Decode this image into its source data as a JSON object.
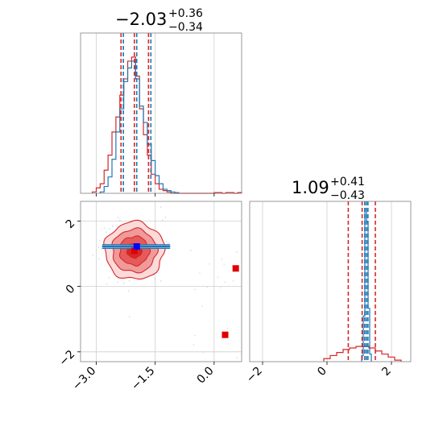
{
  "chart_data": {
    "type": "corner",
    "panels": [
      {
        "id": "hist-param1",
        "type": "histogram",
        "title": {
          "value": "−2.03",
          "sup": "+0.36",
          "sub": "−0.34"
        },
        "xlim": [
          -3.4,
          0.7
        ],
        "grid": true,
        "series": [
          {
            "color": "#d62728",
            "bins": [
              -3.05,
              -2.95,
              -2.85,
              -2.75,
              -2.65,
              -2.55,
              -2.45,
              -2.35,
              -2.25,
              -2.15,
              -2.05,
              -1.95,
              -1.85,
              -1.75,
              -1.65,
              -1.55,
              -1.45,
              -1.35,
              -1.25,
              -1.15,
              -1.05,
              -0.95,
              -0.85,
              -0.75,
              -0.65,
              -0.55,
              -0.45,
              -0.35,
              -0.25,
              -0.15,
              -0.05,
              0.05,
              0.15,
              0.25,
              0.35,
              0.45,
              0.55,
              0.65
            ],
            "counts": [
              0.01,
              0.04,
              0.07,
              0.17,
              0.28,
              0.45,
              0.56,
              0.72,
              0.84,
              0.97,
              1.0,
              0.86,
              0.62,
              0.43,
              0.28,
              0.14,
              0.07,
              0.03,
              0.02,
              0.01,
              0,
              0,
              0,
              0,
              0,
              0,
              0,
              0,
              0,
              0,
              0,
              0.005,
              0.005,
              0,
              0.005,
              0.005,
              0,
              0.005
            ]
          },
          {
            "color": "#1f77b4",
            "bins": [
              -2.85,
              -2.75,
              -2.65,
              -2.55,
              -2.45,
              -2.35,
              -2.25,
              -2.15,
              -2.05,
              -1.95,
              -1.85,
              -1.75,
              -1.65,
              -1.55,
              -1.45,
              -1.35,
              -1.25,
              -1.15,
              -1.05,
              -0.95
            ],
            "counts": [
              0.01,
              0.05,
              0.12,
              0.25,
              0.45,
              0.62,
              0.82,
              0.92,
              0.97,
              0.84,
              0.64,
              0.52,
              0.36,
              0.24,
              0.13,
              0.07,
              0.03,
              0.02,
              0.01,
              0.005
            ]
          }
        ],
        "quantile_lines": [
          {
            "x": -2.37,
            "color": "#d62728"
          },
          {
            "x": -2.03,
            "color": "#d62728"
          },
          {
            "x": -1.67,
            "color": "#d62728"
          },
          {
            "x": -2.31,
            "color": "#1f77b4"
          },
          {
            "x": -1.97,
            "color": "#1f77b4"
          },
          {
            "x": -1.61,
            "color": "#1f77b4"
          }
        ]
      },
      {
        "id": "scatter-2d",
        "type": "2d-contour",
        "xlim": [
          -3.4,
          0.7
        ],
        "ylim": [
          -2.3,
          2.6
        ],
        "xticks": [
          -3.0,
          -1.5,
          0.0
        ],
        "xtick_labels": [
          "−3.0",
          "−1.5",
          "0.0"
        ],
        "yticks": [
          -2,
          0,
          2
        ],
        "ytick_labels": [
          "−2",
          "0",
          "2"
        ],
        "grid": true,
        "contours_red": {
          "center": [
            -2.03,
            1.09
          ],
          "sigma": [
            0.36,
            0.42
          ],
          "levels": [
            0.5,
            1.0,
            1.5,
            2.0
          ],
          "colors": [
            "#d62728",
            "#e65a5a",
            "#f09a9a",
            "#fbdada"
          ]
        },
        "blue_band": {
          "center": [
            -2.0,
            1.22
          ],
          "x_extent": [
            -2.85,
            -1.12
          ],
          "y_halfwidth": 0.06,
          "color": "#1f77b4"
        },
        "scatter_points_red": [
          [
            0.55,
            0.55
          ],
          [
            0.28,
            -1.48
          ]
        ],
        "scatter_points_blue": [
          [
            -1.97,
            1.22
          ]
        ],
        "marker_size_data": 0.1
      },
      {
        "id": "hist-param2",
        "type": "histogram",
        "title": {
          "value": "1.09",
          "sup": "+0.41",
          "sub": "−0.43"
        },
        "xlim": [
          -2.4,
          2.6
        ],
        "xticks": [
          -2,
          0,
          2
        ],
        "xtick_labels": [
          "−2",
          "0",
          "2"
        ],
        "grid": true,
        "series": [
          {
            "color": "#d62728",
            "bins": [
              0.0,
              0.2,
              0.4,
              0.6,
              0.8,
              1.0,
              1.2,
              1.4,
              1.6,
              1.8,
              2.0,
              2.2
            ],
            "counts": [
              0.02,
              0.04,
              0.06,
              0.08,
              0.09,
              0.1,
              0.1,
              0.09,
              0.07,
              0.05,
              0.03,
              0.01
            ]
          },
          {
            "color": "#1f77b4",
            "bins": [
              1.1,
              1.15,
              1.2,
              1.25,
              1.3,
              1.35
            ],
            "counts": [
              0.04,
              0.3,
              1.0,
              0.92,
              0.35,
              0.05
            ]
          }
        ],
        "quantile_lines": [
          {
            "x": 0.66,
            "color": "#d62728"
          },
          {
            "x": 1.09,
            "color": "#d62728"
          },
          {
            "x": 1.5,
            "color": "#d62728"
          },
          {
            "x": 1.17,
            "color": "#1f77b4"
          },
          {
            "x": 1.22,
            "color": "#1f77b4"
          },
          {
            "x": 1.27,
            "color": "#1f77b4"
          }
        ]
      }
    ]
  }
}
